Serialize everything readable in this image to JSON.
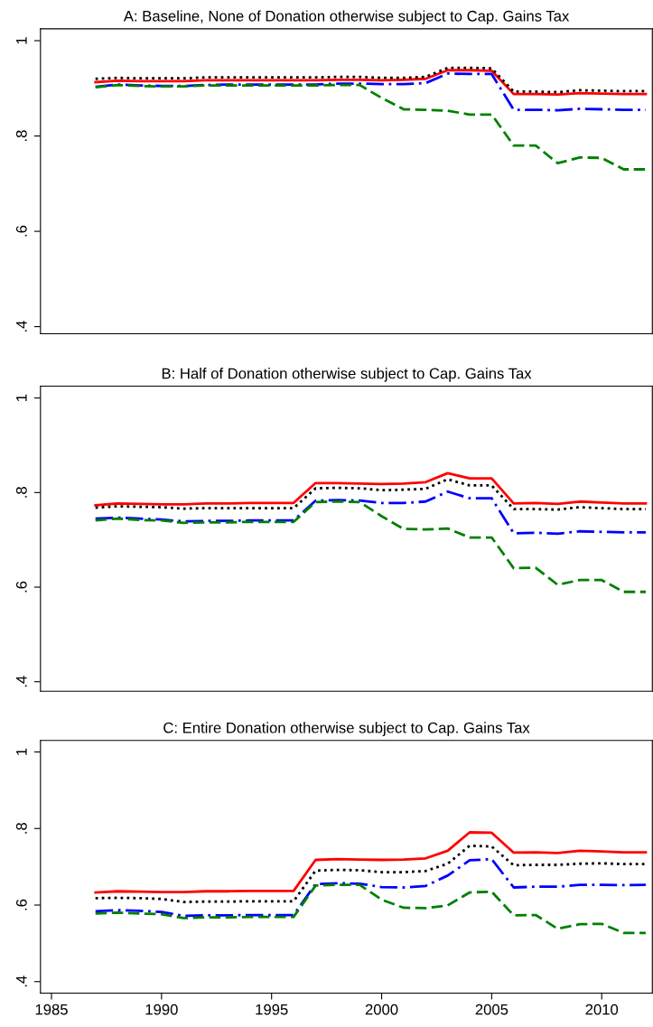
{
  "chart_data": [
    {
      "type": "line",
      "title": "A: Baseline, None of Donation otherwise subject to Cap. Gains Tax",
      "x": [
        1987,
        1988,
        1989,
        1990,
        1991,
        1992,
        1993,
        1994,
        1995,
        1996,
        1997,
        1998,
        1999,
        2000,
        2001,
        2002,
        2003,
        2004,
        2005,
        2006,
        2007,
        2008,
        2009,
        2010,
        2011,
        2012
      ],
      "xlim": [
        1984.5,
        2012.3
      ],
      "xticks": [
        1985,
        1990,
        1995,
        2000,
        2005,
        2010
      ],
      "ylim": [
        0.385,
        1.025
      ],
      "yticks": [
        {
          "value": 0.4,
          "label": ".4"
        },
        {
          "value": 0.6,
          "label": ".6"
        },
        {
          "value": 0.8,
          "label": ".8"
        },
        {
          "value": 1,
          "label": "1"
        }
      ],
      "tick_labels": "y",
      "grid": false,
      "legend": false,
      "marker": "none",
      "series": [
        {
          "color": "#ff0000",
          "line_style": "solid",
          "values": [
            0.913,
            0.916,
            0.915,
            0.915,
            0.915,
            0.917,
            0.917,
            0.917,
            0.917,
            0.917,
            0.917,
            0.918,
            0.918,
            0.917,
            0.918,
            0.92,
            0.938,
            0.938,
            0.937,
            0.888,
            0.888,
            0.887,
            0.89,
            0.889,
            0.888,
            0.888
          ]
        },
        {
          "color": "#000000",
          "line_style": "dotted",
          "values": [
            0.92,
            0.922,
            0.921,
            0.921,
            0.921,
            0.923,
            0.923,
            0.923,
            0.923,
            0.923,
            0.923,
            0.924,
            0.924,
            0.922,
            0.922,
            0.924,
            0.943,
            0.943,
            0.942,
            0.893,
            0.893,
            0.892,
            0.896,
            0.895,
            0.894,
            0.894
          ]
        },
        {
          "color": "#0000ff",
          "line_style": "dashdot",
          "values": [
            0.903,
            0.908,
            0.906,
            0.905,
            0.905,
            0.907,
            0.908,
            0.908,
            0.908,
            0.908,
            0.908,
            0.91,
            0.91,
            0.909,
            0.909,
            0.911,
            0.931,
            0.93,
            0.93,
            0.855,
            0.855,
            0.854,
            0.857,
            0.856,
            0.855,
            0.855
          ]
        },
        {
          "color": "#008000",
          "line_style": "dashed",
          "values": [
            0.902,
            0.907,
            0.905,
            0.904,
            0.904,
            0.906,
            0.906,
            0.906,
            0.906,
            0.906,
            0.906,
            0.907,
            0.907,
            0.88,
            0.856,
            0.855,
            0.853,
            0.845,
            0.845,
            0.78,
            0.78,
            0.743,
            0.755,
            0.754,
            0.73,
            0.73
          ]
        }
      ]
    },
    {
      "type": "line",
      "title": "B: Half of Donation otherwise subject to Cap. Gains Tax",
      "x": [
        1987,
        1988,
        1989,
        1990,
        1991,
        1992,
        1993,
        1994,
        1995,
        1996,
        1997,
        1998,
        1999,
        2000,
        2001,
        2002,
        2003,
        2004,
        2005,
        2006,
        2007,
        2008,
        2009,
        2010,
        2011,
        2012
      ],
      "xlim": [
        1984.5,
        2012.3
      ],
      "xticks": [
        1985,
        1990,
        1995,
        2000,
        2005,
        2010
      ],
      "ylim": [
        0.38,
        1.025
      ],
      "yticks": [
        {
          "value": 0.4,
          "label": ".4"
        },
        {
          "value": 0.6,
          "label": ".6"
        },
        {
          "value": 0.8,
          "label": ".8"
        },
        {
          "value": 1,
          "label": "1"
        }
      ],
      "tick_labels": "y",
      "grid": false,
      "legend": false,
      "marker": "none",
      "series": [
        {
          "color": "#ff0000",
          "line_style": "solid",
          "values": [
            0.773,
            0.777,
            0.776,
            0.775,
            0.775,
            0.777,
            0.777,
            0.778,
            0.778,
            0.778,
            0.82,
            0.82,
            0.819,
            0.818,
            0.819,
            0.822,
            0.841,
            0.83,
            0.83,
            0.777,
            0.778,
            0.776,
            0.781,
            0.779,
            0.777,
            0.777
          ]
        },
        {
          "color": "#000000",
          "line_style": "dotted",
          "values": [
            0.768,
            0.771,
            0.77,
            0.769,
            0.766,
            0.767,
            0.767,
            0.767,
            0.767,
            0.767,
            0.809,
            0.81,
            0.809,
            0.805,
            0.806,
            0.808,
            0.828,
            0.815,
            0.815,
            0.765,
            0.765,
            0.764,
            0.769,
            0.767,
            0.765,
            0.765
          ]
        },
        {
          "color": "#0000ff",
          "line_style": "dashdot",
          "values": [
            0.745,
            0.747,
            0.745,
            0.743,
            0.739,
            0.74,
            0.74,
            0.741,
            0.741,
            0.741,
            0.783,
            0.784,
            0.783,
            0.778,
            0.778,
            0.781,
            0.802,
            0.788,
            0.788,
            0.714,
            0.715,
            0.713,
            0.718,
            0.717,
            0.716,
            0.716
          ]
        },
        {
          "color": "#008000",
          "line_style": "dashed",
          "values": [
            0.741,
            0.745,
            0.742,
            0.741,
            0.736,
            0.737,
            0.737,
            0.738,
            0.738,
            0.738,
            0.78,
            0.781,
            0.78,
            0.75,
            0.723,
            0.722,
            0.724,
            0.705,
            0.705,
            0.64,
            0.641,
            0.605,
            0.615,
            0.615,
            0.59,
            0.59
          ]
        }
      ]
    },
    {
      "type": "line",
      "title": "C: Entire Donation otherwise subject to Cap. Gains Tax",
      "x": [
        1987,
        1988,
        1989,
        1990,
        1991,
        1992,
        1993,
        1994,
        1995,
        1996,
        1997,
        1998,
        1999,
        2000,
        2001,
        2002,
        2003,
        2004,
        2005,
        2006,
        2007,
        2008,
        2009,
        2010,
        2011,
        2012
      ],
      "xlim": [
        1984.5,
        2012.3
      ],
      "xticks": [
        1985,
        1990,
        1995,
        2000,
        2005,
        2010
      ],
      "ylim": [
        0.37,
        1.03
      ],
      "yticks": [
        {
          "value": 0.4,
          "label": ".4"
        },
        {
          "value": 0.6,
          "label": ".6"
        },
        {
          "value": 0.8,
          "label": ".8"
        },
        {
          "value": 1,
          "label": "1"
        }
      ],
      "grid": false,
      "legend": false,
      "marker": "none",
      "series": [
        {
          "color": "#ff0000",
          "line_style": "solid",
          "values": [
            0.633,
            0.636,
            0.635,
            0.634,
            0.634,
            0.636,
            0.636,
            0.637,
            0.637,
            0.637,
            0.718,
            0.72,
            0.719,
            0.718,
            0.719,
            0.722,
            0.742,
            0.79,
            0.789,
            0.737,
            0.738,
            0.736,
            0.742,
            0.74,
            0.738,
            0.738
          ]
        },
        {
          "color": "#000000",
          "line_style": "dotted",
          "values": [
            0.618,
            0.619,
            0.618,
            0.616,
            0.608,
            0.609,
            0.609,
            0.61,
            0.61,
            0.61,
            0.69,
            0.692,
            0.691,
            0.686,
            0.686,
            0.689,
            0.708,
            0.755,
            0.753,
            0.704,
            0.705,
            0.705,
            0.708,
            0.709,
            0.707,
            0.707
          ]
        },
        {
          "color": "#0000ff",
          "line_style": "dashdot",
          "values": [
            0.584,
            0.587,
            0.585,
            0.582,
            0.572,
            0.573,
            0.573,
            0.574,
            0.574,
            0.574,
            0.655,
            0.657,
            0.656,
            0.647,
            0.646,
            0.65,
            0.677,
            0.717,
            0.72,
            0.646,
            0.648,
            0.648,
            0.653,
            0.653,
            0.652,
            0.653
          ]
        },
        {
          "color": "#008000",
          "line_style": "dashed",
          "values": [
            0.578,
            0.58,
            0.578,
            0.576,
            0.566,
            0.568,
            0.568,
            0.569,
            0.569,
            0.569,
            0.651,
            0.653,
            0.653,
            0.614,
            0.593,
            0.592,
            0.599,
            0.633,
            0.635,
            0.573,
            0.574,
            0.538,
            0.55,
            0.551,
            0.527,
            0.527
          ]
        }
      ]
    }
  ]
}
